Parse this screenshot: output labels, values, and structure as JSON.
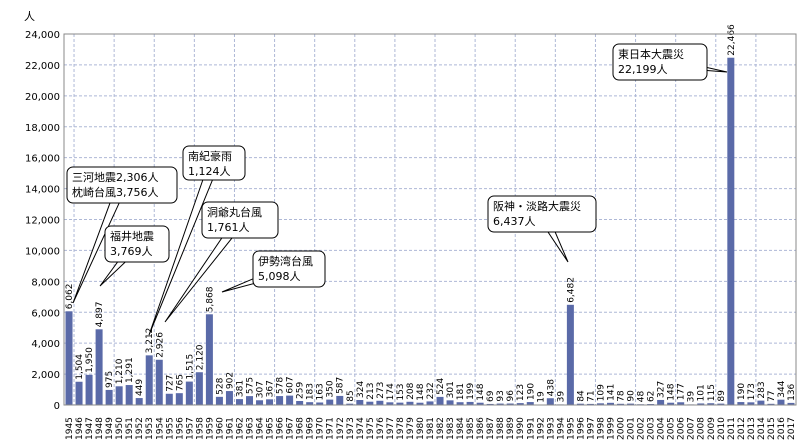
{
  "chart_data": {
    "type": "bar",
    "unit_label": "人",
    "ylim": [
      0,
      24000
    ],
    "yticks": [
      "0",
      "2,000",
      "4,000",
      "6,000",
      "8,000",
      "10,000",
      "12,000",
      "14,000",
      "16,000",
      "18,000",
      "20,000",
      "22,000",
      "24,000"
    ],
    "grid": "both",
    "bar_color": "#5a6aa8",
    "categories": [
      "1945",
      "1946",
      "1947",
      "1948",
      "1949",
      "1950",
      "1951",
      "1952",
      "1953",
      "1954",
      "1955",
      "1956",
      "1957",
      "1958",
      "1959",
      "1960",
      "1961",
      "1962",
      "1963",
      "1964",
      "1965",
      "1966",
      "1967",
      "1968",
      "1969",
      "1970",
      "1971",
      "1972",
      "1973",
      "1974",
      "1975",
      "1976",
      "1977",
      "1978",
      "1979",
      "1980",
      "1981",
      "1982",
      "1983",
      "1984",
      "1985",
      "1986",
      "1987",
      "1988",
      "1989",
      "1990",
      "1991",
      "1992",
      "1993",
      "1994",
      "1995",
      "1996",
      "1997",
      "1998",
      "1999",
      "2000",
      "2001",
      "2002",
      "2003",
      "2004",
      "2005",
      "2006",
      "2007",
      "2008",
      "2009",
      "2010",
      "2011",
      "2012",
      "2013",
      "2014",
      "2015",
      "2016",
      "2017"
    ],
    "values": [
      6062,
      1504,
      1950,
      4897,
      975,
      1210,
      1291,
      449,
      3212,
      2926,
      727,
      765,
      1515,
      2120,
      5868,
      528,
      902,
      381,
      575,
      307,
      367,
      578,
      607,
      259,
      183,
      163,
      350,
      587,
      85,
      324,
      213,
      273,
      174,
      153,
      208,
      148,
      232,
      524,
      301,
      181,
      199,
      148,
      69,
      93,
      96,
      123,
      190,
      19,
      438,
      39,
      6482,
      84,
      71,
      109,
      141,
      78,
      90,
      48,
      62,
      327,
      148,
      177,
      39,
      101,
      115,
      89,
      22466,
      190,
      173,
      283,
      77,
      344,
      136
    ],
    "value_labels": [
      "6,062",
      "1,504",
      "1,950",
      "4,897",
      "975",
      "1,210",
      "1,291",
      "449",
      "3,212",
      "2,926",
      "727",
      "765",
      "1,515",
      "2,120",
      "5,868",
      "528",
      "902",
      "381",
      "575",
      "307",
      "367",
      "578",
      "607",
      "259",
      "183",
      "163",
      "350",
      "587",
      "85",
      "324",
      "213",
      "273",
      "174",
      "153",
      "208",
      "148",
      "232",
      "524",
      "301",
      "181",
      "199",
      "148",
      "69",
      "93",
      "96",
      "123",
      "190",
      "19",
      "438",
      "39",
      "6,482",
      "84",
      "71",
      "109",
      "141",
      "78",
      "90",
      "48",
      "62",
      "327",
      "148",
      "177",
      "39",
      "101",
      "115",
      "89",
      "22,466",
      "190",
      "173",
      "283",
      "77",
      "344",
      "136"
    ],
    "annotations": [
      {
        "lines": [
          "三河地震2,306人",
          "枕崎台風3,756人"
        ],
        "year": "1945"
      },
      {
        "lines": [
          "福井地震",
          "3,769人"
        ],
        "year": "1948"
      },
      {
        "lines": [
          "南紀豪雨",
          "1,124人"
        ],
        "year": "1953"
      },
      {
        "lines": [
          "洞爺丸台風",
          "1,761人"
        ],
        "year": "1954"
      },
      {
        "lines": [
          "伊勢湾台風",
          "5,098人"
        ],
        "year": "1959"
      },
      {
        "lines": [
          "阪神・淡路大震災",
          "6,437人"
        ],
        "year": "1995"
      },
      {
        "lines": [
          "東日本大震災",
          "22,199人"
        ],
        "year": "2011"
      }
    ]
  }
}
